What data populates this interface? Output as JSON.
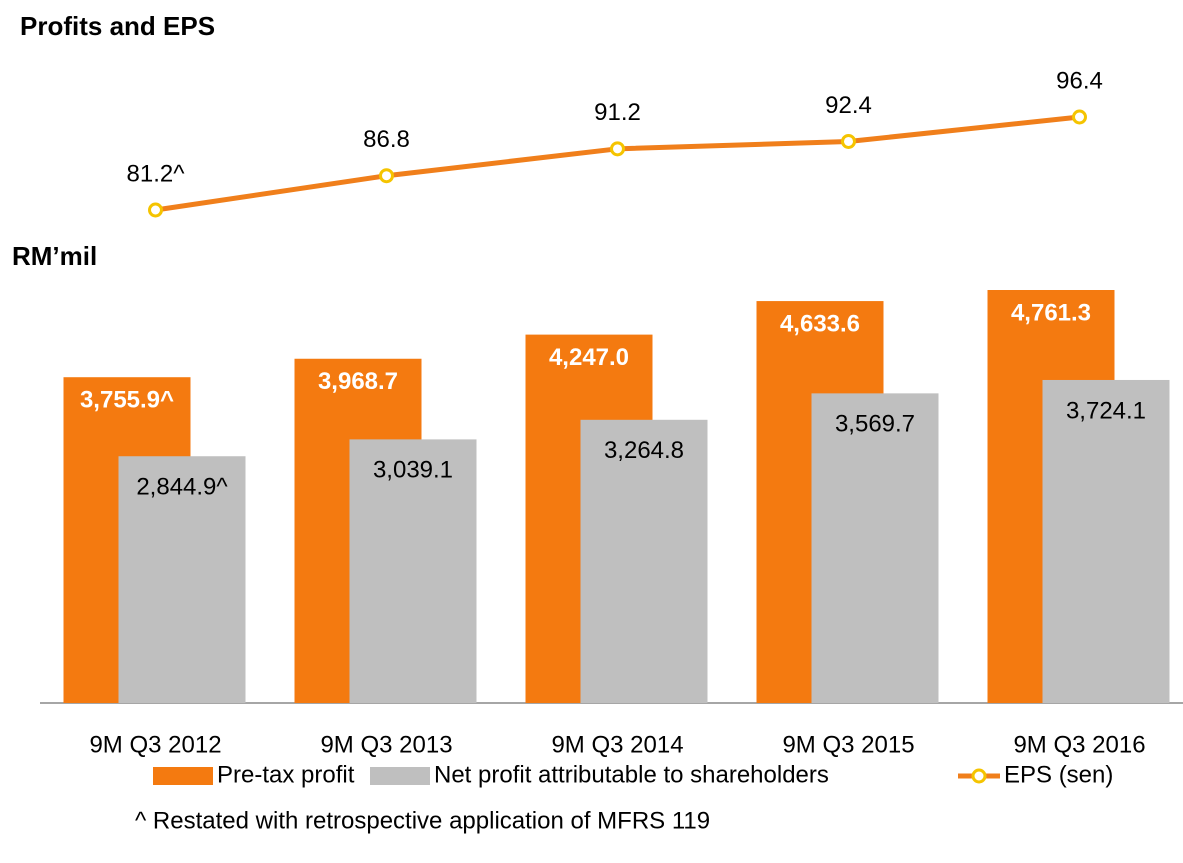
{
  "chart_data": {
    "type": "bar_line",
    "title": "Profits and EPS",
    "y_label": "RM’mil",
    "footnote": "^ Restated with retrospective application of MFRS 119",
    "categories": [
      "9M Q3 2012",
      "9M Q3 2013",
      "9M Q3 2014",
      "9M Q3 2015",
      "9M Q3 2016"
    ],
    "series": [
      {
        "name": "Pre-tax profit",
        "color": "#f47a10",
        "type": "bar",
        "values": [
          3755.9,
          3968.7,
          4247.0,
          4633.6,
          4761.3
        ],
        "value_labels": [
          "3,755.9^",
          "3,968.7",
          "4,247.0",
          "4,633.6",
          "4,761.3"
        ]
      },
      {
        "name": "Net profit attributable to shareholders",
        "color": "#bfbfbf",
        "type": "bar",
        "values": [
          2844.9,
          3039.1,
          3264.8,
          3569.7,
          3724.1
        ],
        "value_labels": [
          "2,844.9^",
          "3,039.1",
          "3,264.8",
          "3,569.7",
          "3,724.1"
        ]
      },
      {
        "name": "EPS (sen)",
        "color": "#f07f1b",
        "marker_color": "#f5c400",
        "type": "line",
        "values": [
          81.2,
          86.8,
          91.2,
          92.4,
          96.4
        ],
        "value_labels": [
          "81.2^",
          "86.8",
          "91.2",
          "92.4",
          "96.4"
        ]
      }
    ]
  }
}
